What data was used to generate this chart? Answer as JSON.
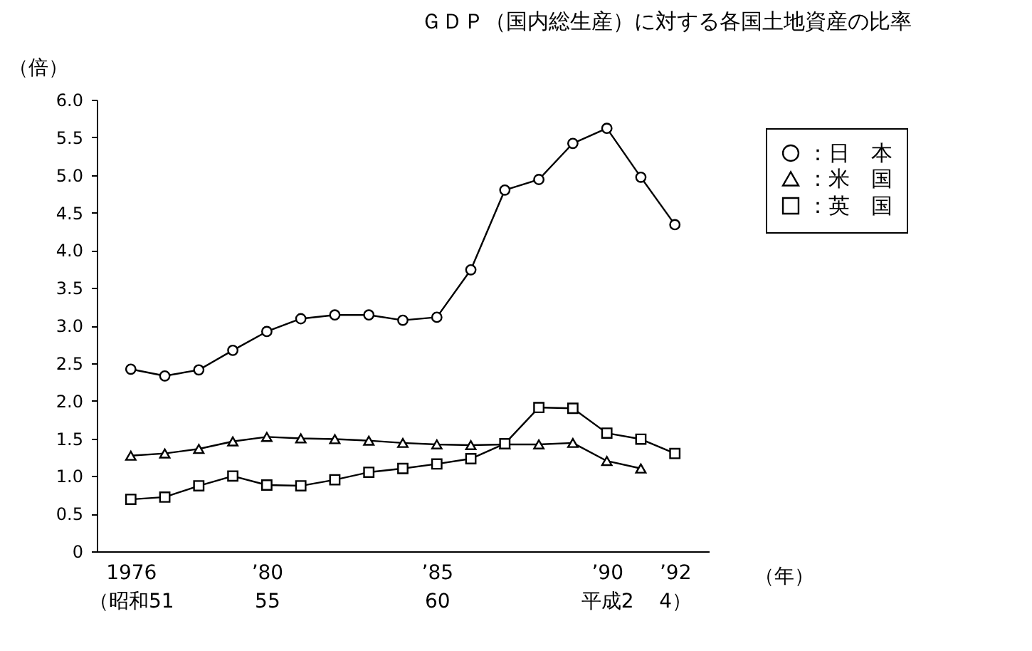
{
  "chart_data": {
    "type": "line",
    "title": "ＧＤＰ（国内総生産）に対する各国土地資産の比率",
    "ylabel": "（倍）",
    "xlabel": "（年）",
    "categories": [
      "1976\n（昭和51",
      null,
      null,
      null,
      "’80\n55",
      null,
      null,
      null,
      null,
      "’85\n60",
      null,
      null,
      null,
      null,
      "’90\n平成2",
      null,
      "’92\n4）"
    ],
    "series": [
      {
        "name": "：日　本",
        "color": "#000000",
        "marker": "circle",
        "values": [
          2.42,
          2.33,
          2.41,
          2.67,
          2.92,
          3.09,
          3.14,
          3.14,
          3.07,
          3.11,
          3.74,
          4.8,
          4.94,
          5.42,
          5.62,
          4.97,
          4.34
        ]
      },
      {
        "name": "：米　国",
        "color": "#000000",
        "marker": "triangle",
        "values": [
          1.27,
          1.3,
          1.36,
          1.46,
          1.52,
          1.5,
          1.49,
          1.47,
          1.44,
          1.42,
          1.41,
          1.42,
          1.42,
          1.44,
          1.2,
          1.1,
          null
        ]
      },
      {
        "name": "：英　国",
        "color": "#000000",
        "marker": "square",
        "values": [
          0.69,
          0.72,
          0.87,
          1.0,
          0.88,
          0.87,
          0.95,
          1.05,
          1.1,
          1.16,
          1.23,
          1.43,
          1.91,
          1.9,
          1.57,
          1.49,
          1.3
        ]
      }
    ],
    "ylim": [
      0,
      6
    ],
    "yticks": [
      {
        "value": 0,
        "label": "0"
      },
      {
        "value": 0.5,
        "label": "0.5"
      },
      {
        "value": 1,
        "label": "1.0"
      },
      {
        "value": 1.5,
        "label": "1.5"
      },
      {
        "value": 2,
        "label": "2.0"
      },
      {
        "value": 2.5,
        "label": "2.5"
      },
      {
        "value": 3,
        "label": "3.0"
      },
      {
        "value": 3.5,
        "label": "3.5"
      },
      {
        "value": 4,
        "label": "4.0"
      },
      {
        "value": 4.5,
        "label": "4.5"
      },
      {
        "value": 5,
        "label": "5.0"
      },
      {
        "value": 5.5,
        "label": "5.5"
      },
      {
        "value": 6,
        "label": "6.0"
      }
    ],
    "grid": false,
    "legend": "top right",
    "line_style": "solid"
  }
}
